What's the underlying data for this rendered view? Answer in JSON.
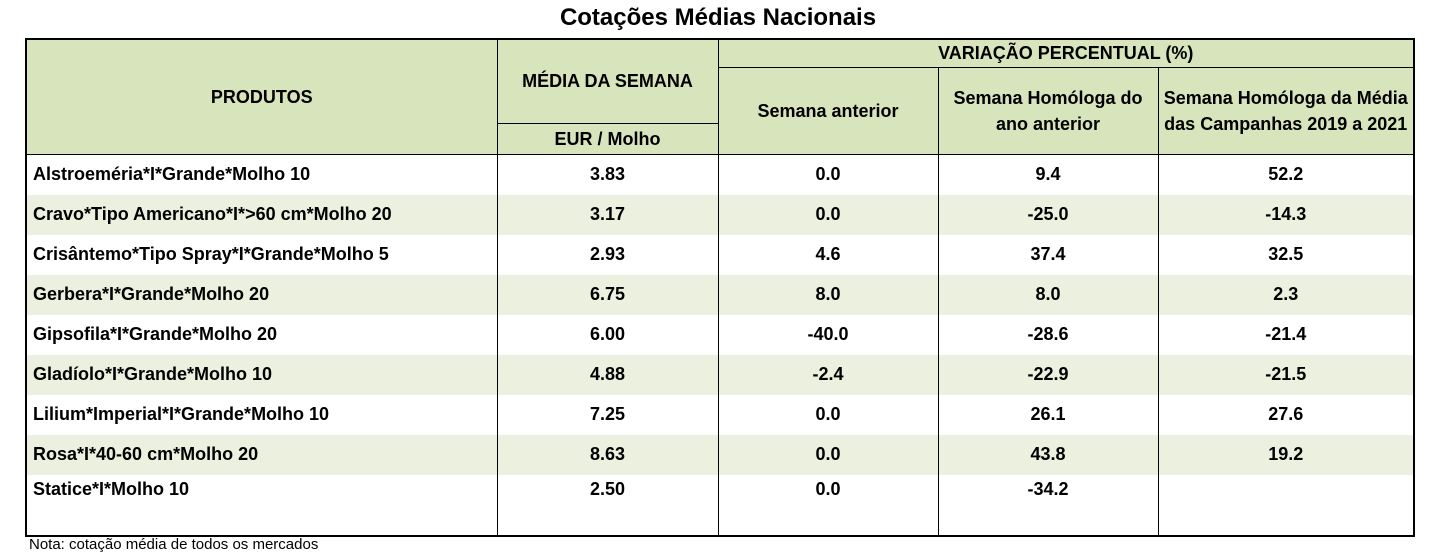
{
  "title": "Cotações Médias Nacionais",
  "header": {
    "produtos": "PRODUTOS",
    "media_semana": "MÉDIA DA SEMANA",
    "unidade": "EUR / Molho",
    "variacao": "VARIAÇÃO PERCENTUAL (%)",
    "semana_anterior": "Semana anterior",
    "homologa_ano": "Semana Homóloga do ano anterior",
    "homologa_campanhas": "Semana Homóloga da Média das Campanhas 2019 a 2021"
  },
  "rows": [
    {
      "produto": "Alstroeméria*I*Grande*Molho 10",
      "media": "3.83",
      "anterior": "0.0",
      "ano": "9.4",
      "campanhas": "52.2"
    },
    {
      "produto": "Cravo*Tipo Americano*I*>60 cm*Molho 20",
      "media": "3.17",
      "anterior": "0.0",
      "ano": "-25.0",
      "campanhas": "-14.3"
    },
    {
      "produto": "Crisântemo*Tipo Spray*I*Grande*Molho 5",
      "media": "2.93",
      "anterior": "4.6",
      "ano": "37.4",
      "campanhas": "32.5"
    },
    {
      "produto": "Gerbera*I*Grande*Molho 20",
      "media": "6.75",
      "anterior": "8.0",
      "ano": "8.0",
      "campanhas": "2.3"
    },
    {
      "produto": "Gipsofila*I*Grande*Molho 20",
      "media": "6.00",
      "anterior": "-40.0",
      "ano": "-28.6",
      "campanhas": "-21.4"
    },
    {
      "produto": "Gladíolo*I*Grande*Molho 10",
      "media": "4.88",
      "anterior": "-2.4",
      "ano": "-22.9",
      "campanhas": "-21.5"
    },
    {
      "produto": "Lilium*Imperial*I*Grande*Molho 10",
      "media": "7.25",
      "anterior": "0.0",
      "ano": "26.1",
      "campanhas": "27.6"
    },
    {
      "produto": "Rosa*I*40-60 cm*Molho 20",
      "media": "8.63",
      "anterior": "0.0",
      "ano": "43.8",
      "campanhas": "19.2"
    },
    {
      "produto": "Statice*I*Molho 10",
      "media": "2.50",
      "anterior": "0.0",
      "ano": "-34.2",
      "campanhas": ""
    }
  ],
  "nota": "Nota: cotação média de todos os mercados",
  "colors": {
    "header_bg": "#d8e4bc",
    "stripe_bg": "#ebf1de",
    "border": "#000000"
  }
}
